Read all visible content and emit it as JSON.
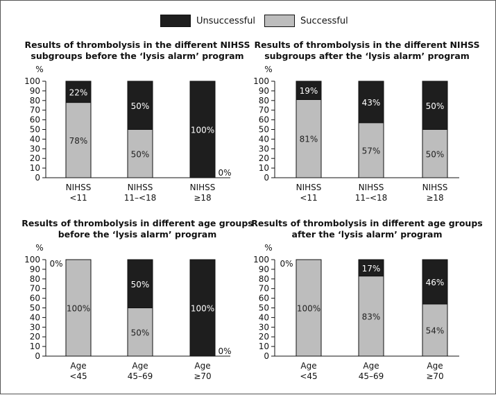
{
  "legend": {
    "unsuccessful": "Unsuccessful",
    "successful": "Successful"
  },
  "colors": {
    "unsuccessful": "#1e1e1e",
    "successful": "#bdbdbd",
    "axis": "#111111"
  },
  "chart_data": [
    {
      "type": "bar",
      "stacked": true,
      "title_lines": [
        "Results of thrombolysis in the different NIHSS",
        "subgroups before the ‘lysis alarm’ program"
      ],
      "ylabel": "%",
      "ylim": [
        0,
        100
      ],
      "yticks": [
        0,
        10,
        20,
        30,
        40,
        50,
        60,
        70,
        80,
        90,
        100
      ],
      "categories": [
        [
          "NIHSS",
          "<11"
        ],
        [
          "NIHSS",
          "11–<18"
        ],
        [
          "NIHSS",
          "≥18"
        ]
      ],
      "series": [
        {
          "name": "Successful",
          "values": [
            78,
            50,
            0
          ]
        },
        {
          "name": "Unsuccessful",
          "values": [
            22,
            50,
            100
          ]
        }
      ],
      "labels": {
        "successful": [
          "78%",
          "50%",
          ""
        ],
        "unsuccessful": [
          "22%",
          "50%",
          "100%"
        ],
        "outside": [
          "",
          "",
          "0%"
        ]
      }
    },
    {
      "type": "bar",
      "stacked": true,
      "title_lines": [
        "Results of thrombolysis in the different NIHSS",
        "subgroups after the ‘lysis alarm’ program"
      ],
      "ylabel": "%",
      "ylim": [
        0,
        100
      ],
      "yticks": [
        0,
        10,
        20,
        30,
        40,
        50,
        60,
        70,
        80,
        90,
        100
      ],
      "categories": [
        [
          "NIHSS",
          "<11"
        ],
        [
          "NIHSS",
          "11–<18"
        ],
        [
          "NIHSS",
          "≥18"
        ]
      ],
      "series": [
        {
          "name": "Successful",
          "values": [
            81,
            57,
            50
          ]
        },
        {
          "name": "Unsuccessful",
          "values": [
            19,
            43,
            50
          ]
        }
      ],
      "labels": {
        "successful": [
          "81%",
          "57%",
          "50%"
        ],
        "unsuccessful": [
          "19%",
          "43%",
          "50%"
        ],
        "outside": [
          "",
          "",
          ""
        ]
      }
    },
    {
      "type": "bar",
      "stacked": true,
      "title_lines": [
        "Results of thrombolysis in different age groups",
        "before the ‘lysis alarm’ program"
      ],
      "ylabel": "%",
      "ylim": [
        0,
        100
      ],
      "yticks": [
        0,
        10,
        20,
        30,
        40,
        50,
        60,
        70,
        80,
        90,
        100
      ],
      "categories": [
        [
          "Age",
          "<45"
        ],
        [
          "Age",
          "45–69"
        ],
        [
          "Age",
          "≥70"
        ]
      ],
      "series": [
        {
          "name": "Successful",
          "values": [
            100,
            50,
            0
          ]
        },
        {
          "name": "Unsuccessful",
          "values": [
            0,
            50,
            100
          ]
        }
      ],
      "labels": {
        "successful": [
          "100%",
          "50%",
          ""
        ],
        "unsuccessful": [
          "",
          "50%",
          "100%"
        ],
        "outside": [
          "0%",
          "",
          "0%"
        ]
      }
    },
    {
      "type": "bar",
      "stacked": true,
      "title_lines": [
        "Results of thrombolysis in different age groups",
        "after the ‘lysis alarm’ program"
      ],
      "ylabel": "%",
      "ylim": [
        0,
        100
      ],
      "yticks": [
        0,
        10,
        20,
        30,
        40,
        50,
        60,
        70,
        80,
        90,
        100
      ],
      "categories": [
        [
          "Age",
          "<45"
        ],
        [
          "Age",
          "45–69"
        ],
        [
          "Age",
          "≥70"
        ]
      ],
      "series": [
        {
          "name": "Successful",
          "values": [
            100,
            83,
            54
          ]
        },
        {
          "name": "Unsuccessful",
          "values": [
            0,
            17,
            46
          ]
        }
      ],
      "labels": {
        "successful": [
          "100%",
          "83%",
          "54%"
        ],
        "unsuccessful": [
          "",
          "17%",
          "46%"
        ],
        "outside": [
          "0%",
          "",
          ""
        ]
      }
    }
  ]
}
